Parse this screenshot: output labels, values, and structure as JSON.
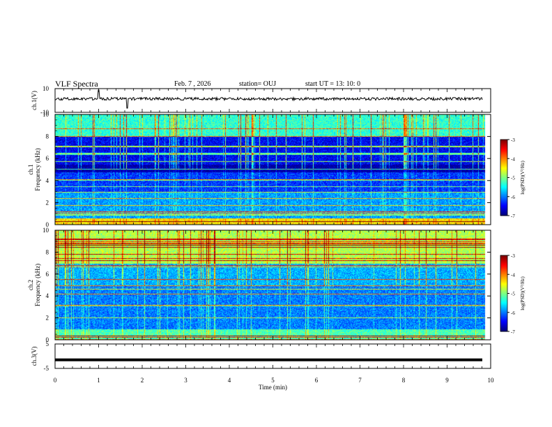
{
  "header": {
    "title": "VLF Spectra",
    "date": "Feb. 7 , 2026",
    "station": "station= OUJ",
    "start": "start UT =   13: 10: 0"
  },
  "chart_data": [
    {
      "type": "line",
      "panel": "ch1-waveform",
      "ylabel": "ch.1(V)",
      "ylim": [
        -10,
        10
      ],
      "yticks": [
        "10",
        "-10"
      ],
      "xlim": [
        0,
        10
      ],
      "note": "noisy waveform near +0, spikes near 1.0 and 1.65 min"
    },
    {
      "type": "heatmap",
      "panel": "ch1-spectrogram",
      "ylabel_channel": "ch.1",
      "ylabel": "Frequency (kHz)",
      "ylim": [
        0,
        10
      ],
      "yticks": [
        "0",
        "2",
        "4",
        "6",
        "8",
        "10"
      ],
      "xlim": [
        0,
        10
      ],
      "colorbar": {
        "label": "log(PSD)(V²/Hz)",
        "ticks": [
          "-3",
          "-4",
          "-5",
          "-6",
          "-7"
        ],
        "range": [
          -7,
          -3
        ]
      }
    },
    {
      "type": "heatmap",
      "panel": "ch2-spectrogram",
      "ylabel_channel": "ch.2",
      "ylabel": "Frequency (kHz)",
      "ylim": [
        0,
        10
      ],
      "yticks": [
        "0",
        "2",
        "4",
        "6",
        "8",
        "10"
      ],
      "xlim": [
        0,
        10
      ],
      "colorbar": {
        "label": "log(PSD)(V²/Hz)",
        "ticks": [
          "-3",
          "-4",
          "-5",
          "-6",
          "-7"
        ],
        "range": [
          -7,
          -3
        ]
      }
    },
    {
      "type": "line",
      "panel": "ch3-waveform",
      "ylabel": "ch.3(V)",
      "ylim": [
        -5,
        5
      ],
      "yticks": [
        "5",
        "-5"
      ],
      "xlim": [
        0,
        10
      ],
      "xlabel": "Time (min)",
      "xticks": [
        "0",
        "1",
        "2",
        "3",
        "4",
        "5",
        "6",
        "7",
        "8",
        "9",
        "10"
      ],
      "values_const": -1.5
    }
  ]
}
